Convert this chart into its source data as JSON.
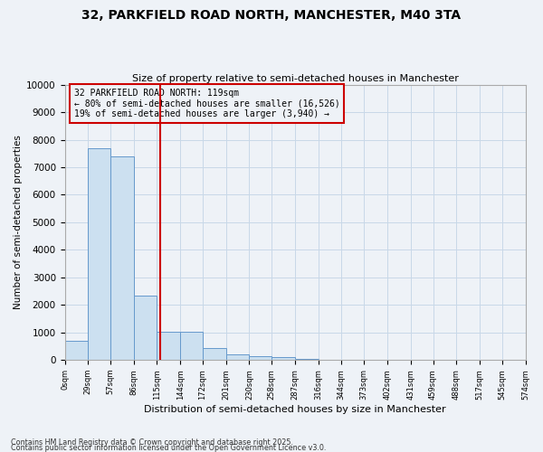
{
  "title_line1": "32, PARKFIELD ROAD NORTH, MANCHESTER, M40 3TA",
  "title_line2": "Size of property relative to semi-detached houses in Manchester",
  "xlabel": "Distribution of semi-detached houses by size in Manchester",
  "ylabel": "Number of semi-detached properties",
  "footnote1": "Contains HM Land Registry data © Crown copyright and database right 2025.",
  "footnote2": "Contains public sector information licensed under the Open Government Licence v3.0.",
  "annotation_line1": "32 PARKFIELD ROAD NORTH: 119sqm",
  "annotation_line2": "← 80% of semi-detached houses are smaller (16,526)",
  "annotation_line3": "19% of semi-detached houses are larger (3,940) →",
  "bar_left_edges": [
    0,
    29,
    57,
    86,
    115,
    144,
    172,
    201,
    230,
    258,
    287,
    316,
    344,
    373,
    402,
    431,
    459,
    488,
    517,
    545
  ],
  "bar_widths": [
    29,
    28,
    29,
    29,
    29,
    28,
    29,
    29,
    28,
    29,
    29,
    28,
    29,
    29,
    29,
    28,
    29,
    29,
    28,
    29
  ],
  "bar_heights": [
    700,
    7700,
    7400,
    2350,
    1020,
    1020,
    450,
    220,
    150,
    120,
    50,
    5,
    0,
    0,
    0,
    0,
    0,
    0,
    0,
    0
  ],
  "bar_color": "#cce0f0",
  "bar_edge_color": "#6699cc",
  "property_line_x": 119,
  "property_line_color": "#cc0000",
  "annotation_box_color": "#cc0000",
  "grid_color": "#c8d8e8",
  "bg_color": "#eef2f7",
  "ylim": [
    0,
    10000
  ],
  "yticks": [
    0,
    1000,
    2000,
    3000,
    4000,
    5000,
    6000,
    7000,
    8000,
    9000,
    10000
  ],
  "xtick_labels": [
    "0sqm",
    "29sqm",
    "57sqm",
    "86sqm",
    "115sqm",
    "144sqm",
    "172sqm",
    "201sqm",
    "230sqm",
    "258sqm",
    "287sqm",
    "316sqm",
    "344sqm",
    "373sqm",
    "402sqm",
    "431sqm",
    "459sqm",
    "488sqm",
    "517sqm",
    "545sqm",
    "574sqm"
  ],
  "xlim_max": 574
}
